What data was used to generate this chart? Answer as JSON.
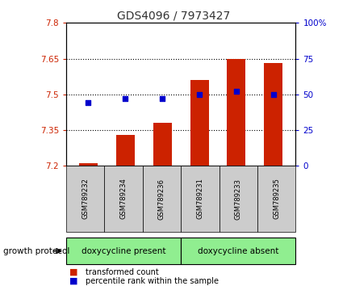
{
  "title": "GDS4096 / 7973427",
  "samples": [
    "GSM789232",
    "GSM789234",
    "GSM789236",
    "GSM789231",
    "GSM789233",
    "GSM789235"
  ],
  "transformed_count": [
    7.21,
    7.33,
    7.38,
    7.56,
    7.65,
    7.63
  ],
  "percentile_rank": [
    44,
    47,
    47,
    50,
    52,
    50
  ],
  "ylim_left": [
    7.2,
    7.8
  ],
  "ylim_right": [
    0,
    100
  ],
  "yticks_left": [
    7.2,
    7.35,
    7.5,
    7.65,
    7.8
  ],
  "yticks_right": [
    0,
    25,
    50,
    75,
    100
  ],
  "ytick_labels_left": [
    "7.2",
    "7.35",
    "7.5",
    "7.65",
    "7.8"
  ],
  "ytick_labels_right": [
    "0",
    "25",
    "50",
    "75",
    "100%"
  ],
  "hlines": [
    7.35,
    7.5,
    7.65
  ],
  "bar_color": "#cc2200",
  "dot_color": "#0000cc",
  "bar_bottom": 7.2,
  "group1_label": "doxycycline present",
  "group2_label": "doxycycline absent",
  "protocol_label": "growth protocol",
  "legend_bar_label": "transformed count",
  "legend_dot_label": "percentile rank within the sample",
  "group_bg_color": "#90ee90",
  "sample_bg_color": "#cccccc",
  "left_tick_color": "#cc2200",
  "right_tick_color": "#0000cc"
}
